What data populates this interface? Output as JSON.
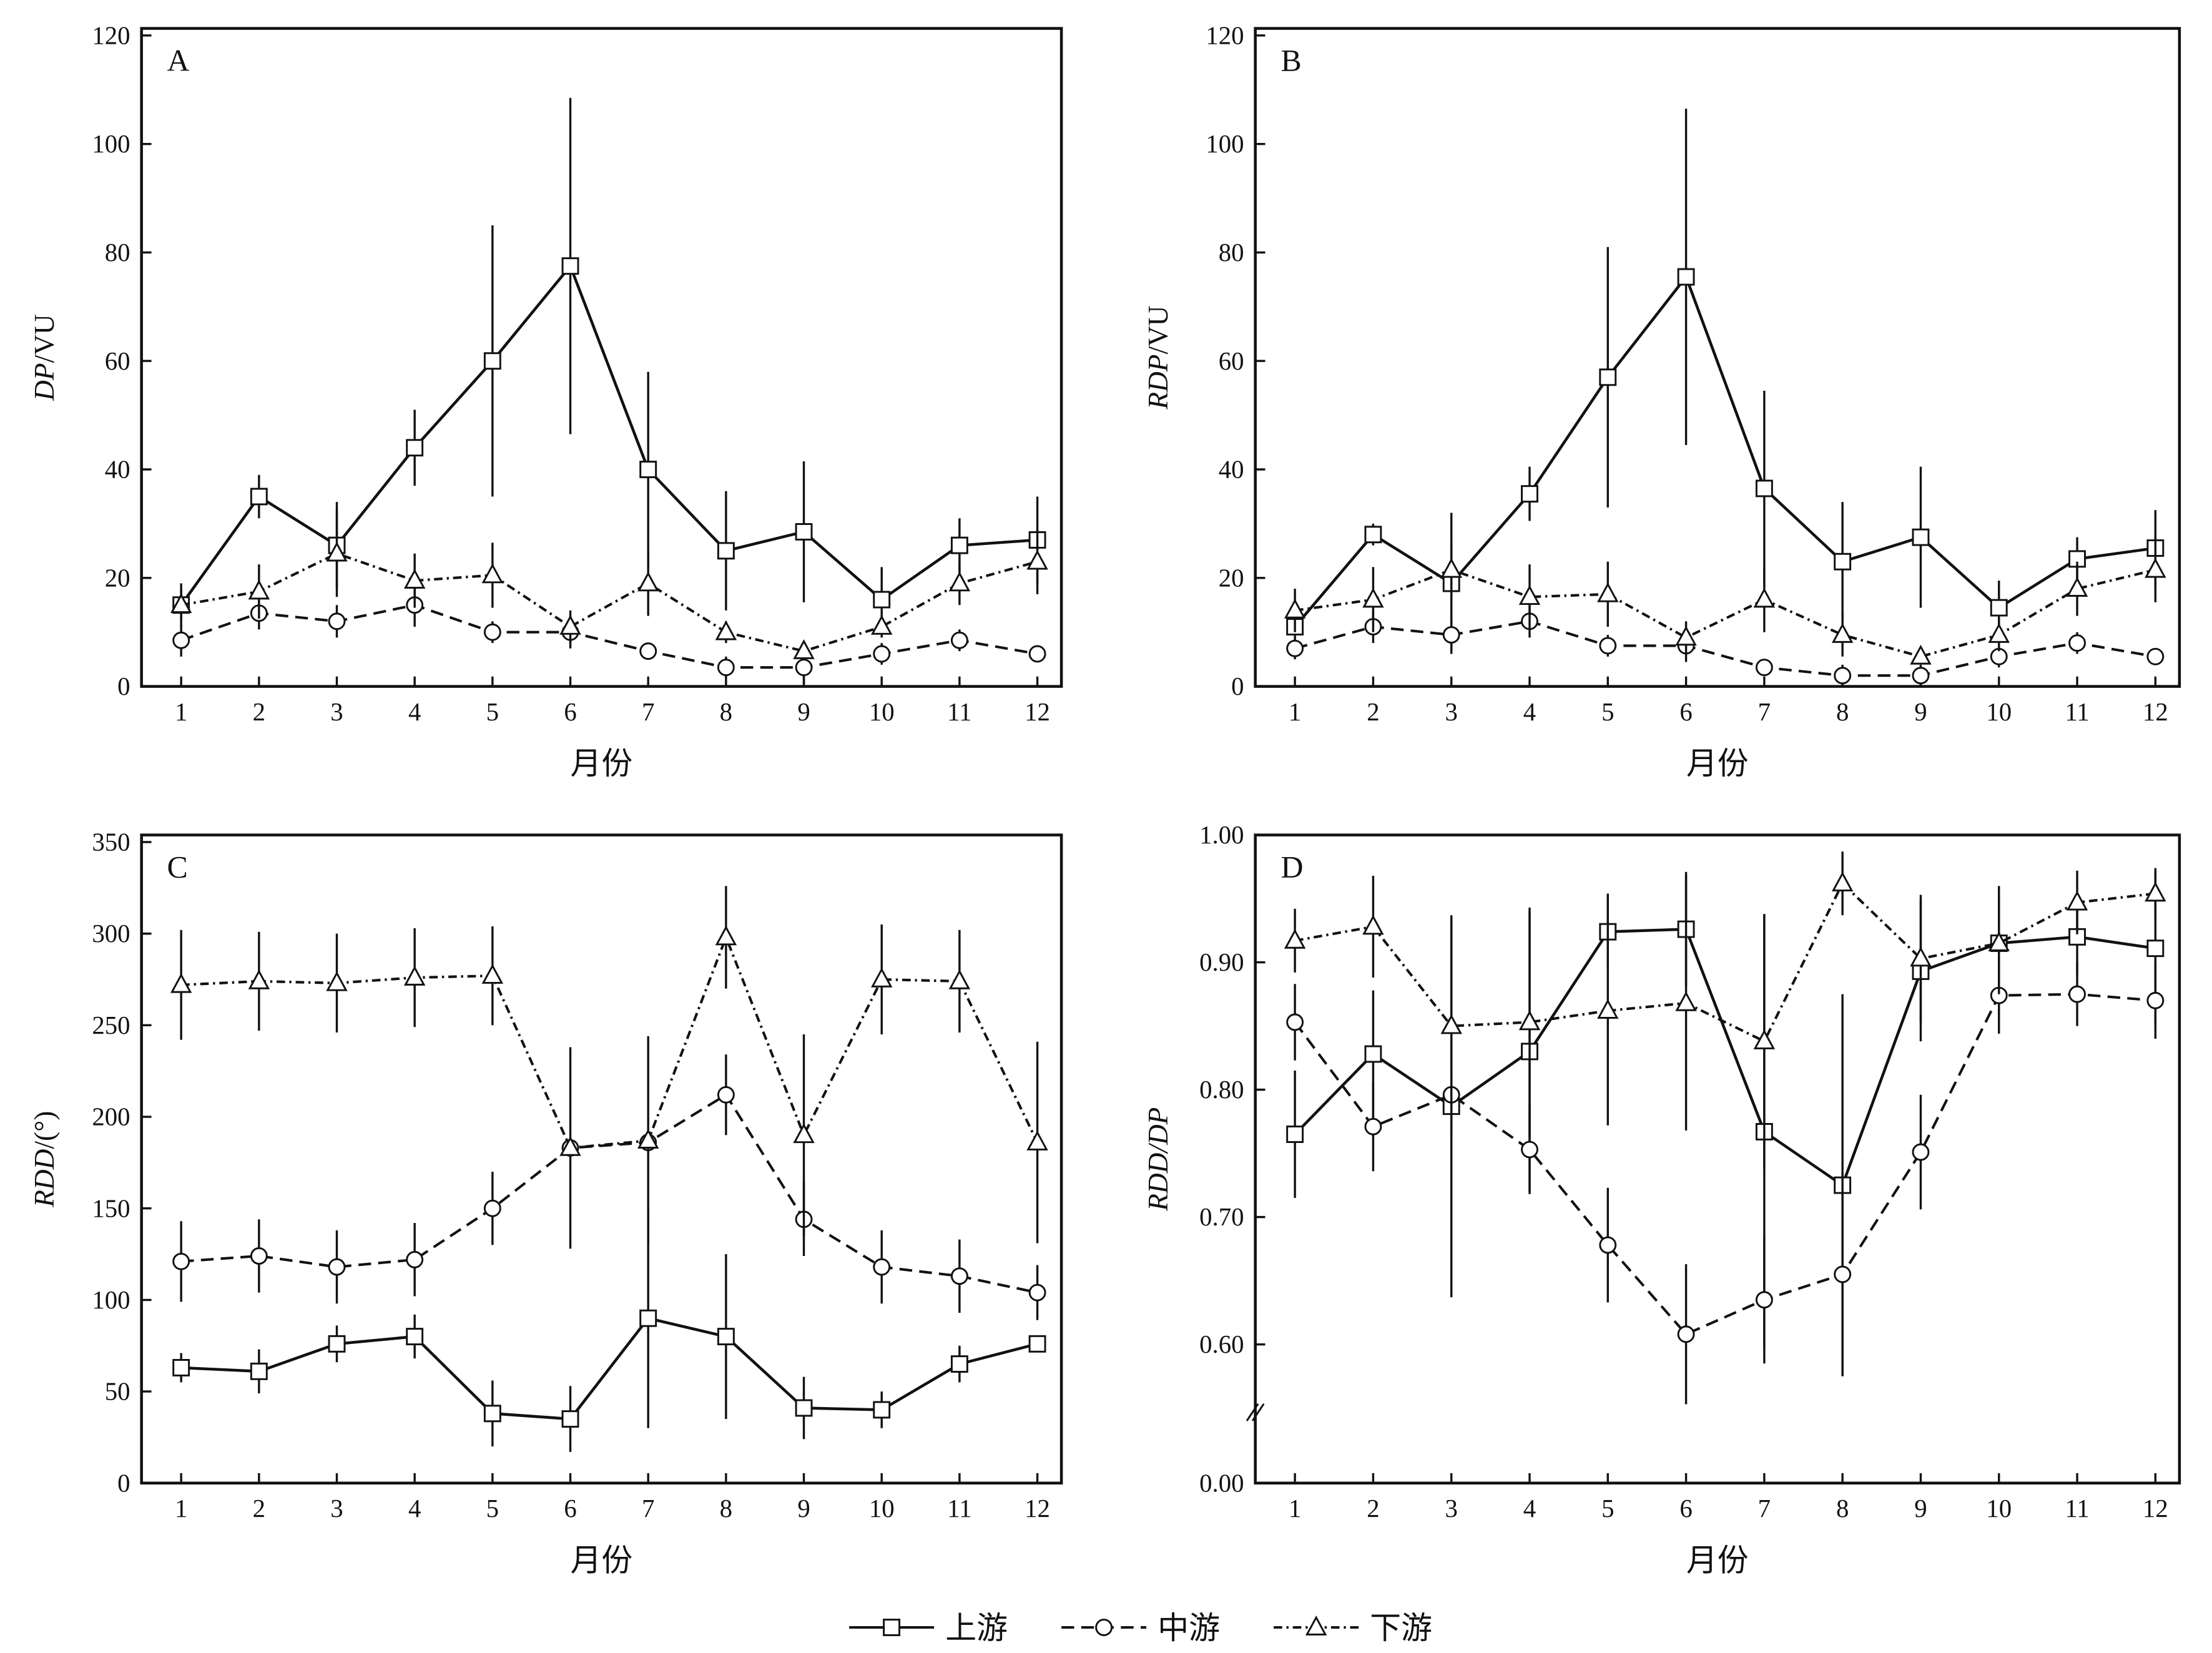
{
  "legend": [
    {
      "name": "上游",
      "marker": "square",
      "dash": "solid"
    },
    {
      "name": "中游",
      "marker": "circle",
      "dash": "dashed"
    },
    {
      "name": "下游",
      "marker": "triangle",
      "dash": "dash-dot"
    }
  ],
  "chart_data": [
    {
      "type": "line",
      "panel_label": "A",
      "ylabel_italic": "DP",
      "ylabel_rest": "/VU",
      "xlabel": "月份",
      "x": [
        1,
        2,
        3,
        4,
        5,
        6,
        7,
        8,
        9,
        10,
        11,
        12
      ],
      "ylim": [
        0,
        120
      ],
      "yticks": [
        "0",
        "20",
        "40",
        "60",
        "80",
        "100",
        "120"
      ],
      "series": [
        {
          "name": "上游",
          "values": [
            15,
            35,
            26,
            44,
            60,
            77.5,
            40,
            25,
            28.5,
            16,
            26,
            27
          ],
          "errors": [
            3,
            4,
            8,
            7,
            25,
            31,
            18,
            11,
            13,
            6,
            5,
            8
          ]
        },
        {
          "name": "中游",
          "values": [
            8.5,
            13.5,
            12,
            15,
            10,
            10,
            6.5,
            3.5,
            3.5,
            6,
            8.5,
            6
          ],
          "errors": [
            3,
            3,
            3,
            4,
            2,
            3,
            0,
            2,
            3,
            2,
            2,
            0
          ]
        },
        {
          "name": "下游",
          "values": [
            15,
            17.5,
            24.5,
            19.5,
            20.5,
            11,
            19,
            10,
            6.5,
            11,
            19,
            23
          ],
          "errors": [
            4,
            5,
            8,
            5,
            6,
            3,
            6,
            2,
            1,
            2,
            4,
            6
          ]
        }
      ]
    },
    {
      "type": "line",
      "panel_label": "B",
      "ylabel_italic": "RDP",
      "ylabel_rest": "/VU",
      "xlabel": "月份",
      "x": [
        1,
        2,
        3,
        4,
        5,
        6,
        7,
        8,
        9,
        10,
        11,
        12
      ],
      "ylim": [
        0,
        120
      ],
      "yticks": [
        "0",
        "20",
        "40",
        "60",
        "80",
        "100",
        "120"
      ],
      "series": [
        {
          "name": "上游",
          "values": [
            11,
            28,
            19,
            35.5,
            57,
            75.5,
            36.5,
            23,
            27.5,
            14.5,
            23.5,
            25.5
          ],
          "errors": [
            4,
            2,
            13,
            5,
            24,
            31,
            18,
            11,
            13,
            5,
            4,
            7
          ]
        },
        {
          "name": "中游",
          "values": [
            7,
            11,
            9.5,
            12,
            7.5,
            7.5,
            3.5,
            2,
            2,
            5.5,
            8,
            5.5
          ],
          "errors": [
            2,
            3,
            3,
            3,
            2,
            3,
            0,
            2,
            2,
            2,
            2,
            0
          ]
        },
        {
          "name": "下游",
          "values": [
            14,
            16,
            21.5,
            16.5,
            17,
            9,
            16,
            9.5,
            5.5,
            9.5,
            18,
            21.5
          ],
          "errors": [
            4,
            6,
            5,
            6,
            6,
            3,
            6,
            4,
            1,
            3,
            5,
            6
          ]
        }
      ]
    },
    {
      "type": "line",
      "panel_label": "C",
      "ylabel_italic": "RDD",
      "ylabel_rest": "/(°)",
      "xlabel": "月份",
      "x": [
        1,
        2,
        3,
        4,
        5,
        6,
        7,
        8,
        9,
        10,
        11,
        12
      ],
      "ylim": [
        0,
        350
      ],
      "yticks": [
        "0",
        "50",
        "100",
        "150",
        "200",
        "250",
        "300",
        "350"
      ],
      "series": [
        {
          "name": "上游",
          "values": [
            63,
            61,
            76,
            80,
            38,
            35,
            90,
            80,
            41,
            40,
            65,
            76
          ],
          "errors": [
            8,
            12,
            10,
            12,
            18,
            18,
            60,
            45,
            17,
            10,
            10,
            3
          ]
        },
        {
          "name": "中游",
          "values": [
            121,
            124,
            118,
            122,
            150,
            183,
            186,
            212,
            144,
            118,
            113,
            104
          ],
          "errors": [
            22,
            20,
            20,
            20,
            20,
            3,
            5,
            22,
            20,
            20,
            20,
            15
          ]
        },
        {
          "name": "下游",
          "values": [
            272,
            274,
            273,
            276,
            277,
            183,
            187,
            298,
            190,
            275,
            274,
            186
          ],
          "errors": [
            30,
            27,
            27,
            27,
            27,
            55,
            57,
            28,
            55,
            30,
            28,
            55
          ]
        }
      ]
    },
    {
      "type": "line",
      "panel_label": "D",
      "ylabel_italic": "RDD/DP",
      "ylabel_rest": "",
      "xlabel": "月份",
      "x": [
        1,
        2,
        3,
        4,
        5,
        6,
        7,
        8,
        9,
        10,
        11,
        12
      ],
      "ylim": [
        0.0,
        1.0
      ],
      "axis_break": [
        0.0,
        0.55
      ],
      "yticks": [
        "0.00",
        "0.60",
        "0.70",
        "0.80",
        "0.90",
        "1.00"
      ],
      "series": [
        {
          "name": "上游",
          "values": [
            0.765,
            0.828,
            0.787,
            0.83,
            0.924,
            0.926,
            0.767,
            0.725,
            0.893,
            0.915,
            0.92,
            0.911
          ],
          "errors": [
            0.05,
            0.05,
            0.15,
            0.11,
            0.03,
            0.045,
            0.17,
            0.15,
            0.055,
            0.045,
            0.03,
            0.06
          ]
        },
        {
          "name": "中游",
          "values": [
            0.853,
            0.771,
            0.796,
            0.753,
            0.678,
            0.608,
            0.635,
            0.655,
            0.751,
            0.874,
            0.875,
            0.87
          ],
          "errors": [
            0.03,
            0.035,
            0.02,
            0.035,
            0.045,
            0.055,
            0.05,
            0.08,
            0.045,
            0.03,
            0.025,
            0.03
          ]
        },
        {
          "name": "下游",
          "values": [
            0.917,
            0.928,
            0.85,
            0.853,
            0.862,
            0.868,
            0.838,
            0.962,
            0.903,
            0.915,
            0.947,
            0.954
          ],
          "errors": [
            0.025,
            0.04,
            0.085,
            0.09,
            0.09,
            0.1,
            0.1,
            0.025,
            0.05,
            0.04,
            0.025,
            0.02
          ]
        }
      ]
    }
  ]
}
